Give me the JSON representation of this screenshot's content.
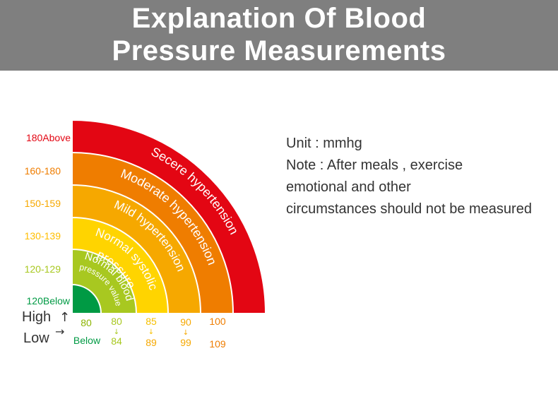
{
  "header": {
    "title_line1": "Explanation Of Blood",
    "title_line2": "Pressure Measurements"
  },
  "colors": {
    "header_bg": "#7f7f7f",
    "green": "#009a44",
    "lime": "#a8c820",
    "yellow": "#ffd400",
    "light_orange": "#f6a800",
    "orange": "#ef7d00",
    "red": "#e30613"
  },
  "categories": [
    {
      "label": "Normal blood pressure value",
      "line1": "Normal blood",
      "line2": "pressure value",
      "systolic": "120Below",
      "diastolic_top": "80",
      "diastolic_bottom": "Below",
      "color": "#a8c820"
    },
    {
      "label": "Normal systolic pressure",
      "line1": "Normal systolic",
      "line2": "pressure",
      "systolic": "120-129",
      "diastolic_top": "80",
      "diastolic_bottom": "84",
      "color": "#ffd400"
    },
    {
      "label": "Mild hypertension",
      "systolic": "130-139",
      "diastolic_top": "85",
      "diastolic_bottom": "89",
      "color": "#f6a800"
    },
    {
      "label": "Moderate hypertension",
      "systolic": "150-159",
      "diastolic_top": "90",
      "diastolic_bottom": "99",
      "color": "#ef7d00"
    },
    {
      "label": "Secere hypertension",
      "systolic": "160-180",
      "diastolic_top": "100",
      "diastolic_bottom": "109",
      "color": "#e30613"
    }
  ],
  "systolic_top_label": "180Above",
  "legend": {
    "high": "High",
    "high_arrow": "↑",
    "low": "Low",
    "low_arrow": "→",
    "down_arrow": "↓"
  },
  "note": {
    "line1": "Unit : mmhg",
    "line2": "Note : After meals , exercise",
    "line3": "emotional and other",
    "line4": "circumstances should not be measured"
  }
}
